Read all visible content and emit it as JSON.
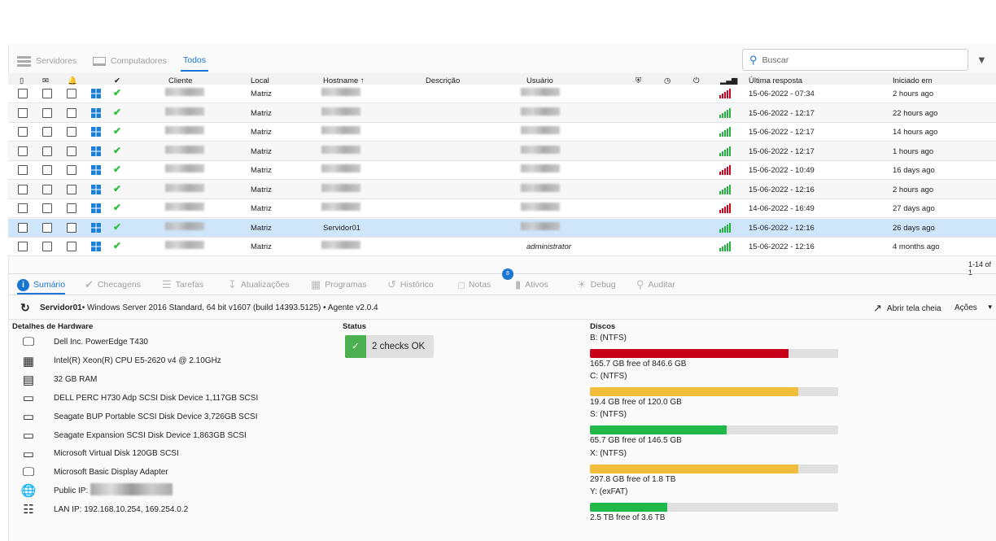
{
  "top_tabs": [
    {
      "label": "Servidores",
      "icon": "server-icon"
    },
    {
      "label": "Computadores",
      "icon": "laptop-icon"
    },
    {
      "label": "Todos",
      "active": true
    }
  ],
  "search": {
    "placeholder": "Buscar"
  },
  "columns": {
    "cliente": "Cliente",
    "local": "Local",
    "hostname": "Hostname ↑",
    "descricao": "Descrição",
    "usuario": "Usuário",
    "ultima": "Última resposta",
    "iniciado": "Iniciado em"
  },
  "rows": [
    {
      "local": "Matriz",
      "hostname": "",
      "user": "",
      "signal": "#d0021b",
      "last": "15-06-2022 - 07:34",
      "started": "2 hours ago"
    },
    {
      "local": "Matriz",
      "hostname": "",
      "user": "",
      "signal": "#21b33e",
      "last": "15-06-2022 - 12:17",
      "started": "22 hours ago"
    },
    {
      "local": "Matriz",
      "hostname": "",
      "user": "",
      "signal": "#21b33e",
      "last": "15-06-2022 - 12:17",
      "started": "14 hours ago"
    },
    {
      "local": "Matriz",
      "hostname": "",
      "user": "",
      "signal": "#21b33e",
      "last": "15-06-2022 - 12:17",
      "started": "1 hours ago"
    },
    {
      "local": "Matriz",
      "hostname": "",
      "user": "",
      "signal": "#d0021b",
      "last": "15-06-2022 - 10:49",
      "started": "16 days ago"
    },
    {
      "local": "Matriz",
      "hostname": "",
      "user": "",
      "signal": "#21b33e",
      "last": "15-06-2022 - 12:16",
      "started": "2 hours ago"
    },
    {
      "local": "Matriz",
      "hostname": "",
      "user": "",
      "signal": "#d0021b",
      "last": "14-06-2022 - 16:49",
      "started": "27 days ago"
    },
    {
      "local": "Matriz",
      "hostname": "Servidor01",
      "user": "",
      "signal": "#21b33e",
      "last": "15-06-2022 - 12:16",
      "started": "26 days ago",
      "selected": true
    },
    {
      "local": "Matriz",
      "hostname": "",
      "user": "administrator",
      "signal": "#21b33e",
      "last": "15-06-2022 - 12:16",
      "started": "4 months ago"
    }
  ],
  "pagination": "1-14 of 1",
  "detail_tabs": [
    {
      "label": "Sumário",
      "active": true
    },
    {
      "label": "Checagens"
    },
    {
      "label": "Tarefas"
    },
    {
      "label": "Atualizações"
    },
    {
      "label": "Programas"
    },
    {
      "label": "Histórico"
    },
    {
      "label": "Notas",
      "badge": "8"
    },
    {
      "label": "Ativos"
    },
    {
      "label": "Debug"
    },
    {
      "label": "Auditar"
    }
  ],
  "summary": {
    "hostname": "Servidor01",
    "info": "• Windows Server 2016 Standard, 64 bit v1607 (build 14393.5125) • Agente v2.0.4",
    "fullscreen": "Abrir tela cheia",
    "actions": "Ações"
  },
  "hardware": {
    "title": "Detalhes de Hardware",
    "items": [
      {
        "icon": "monitor-icon",
        "text": "Dell Inc. PowerEdge T430"
      },
      {
        "icon": "cpu-icon",
        "text": "Intel(R) Xeon(R) CPU E5-2620 v4 @ 2.10GHz"
      },
      {
        "icon": "ram-icon",
        "text": "32 GB RAM"
      },
      {
        "icon": "disk-icon",
        "text": "DELL PERC H730 Adp SCSI Disk Device 1,117GB SCSI"
      },
      {
        "icon": "disk-icon",
        "text": "Seagate BUP Portable SCSI Disk Device 3,726GB SCSI"
      },
      {
        "icon": "disk-icon",
        "text": "Seagate Expansion SCSI Disk Device 1,863GB SCSI"
      },
      {
        "icon": "disk-icon",
        "text": "Microsoft Virtual Disk 120GB SCSI"
      },
      {
        "icon": "monitor-icon",
        "text": "Microsoft Basic Display Adapter"
      },
      {
        "icon": "globe-icon",
        "text": "Public IP:"
      },
      {
        "icon": "network-icon",
        "text": "LAN IP: 192.168.10.254, 169.254.0.2"
      }
    ]
  },
  "status": {
    "title": "Status",
    "text": "2 checks OK"
  },
  "disks": {
    "title": "Discos",
    "items": [
      {
        "label": "B: (NTFS)",
        "used_pct": 80,
        "color": "#c8001a",
        "free": "165.7 GB free of 846.6 GB"
      },
      {
        "label": "C: (NTFS)",
        "used_pct": 84,
        "color": "#f2bd3a",
        "free": "19.4 GB free of 120.0 GB"
      },
      {
        "label": "S: (NTFS)",
        "used_pct": 55,
        "color": "#21b84a",
        "free": "65.7 GB free of 146.5 GB"
      },
      {
        "label": "X: (NTFS)",
        "used_pct": 84,
        "color": "#f2bd3a",
        "free": "297.8 GB free of 1.8 TB"
      },
      {
        "label": "Y: (exFAT)",
        "used_pct": 31,
        "color": "#21b84a",
        "free": "2.5 TB free of 3.6 TB"
      }
    ]
  }
}
